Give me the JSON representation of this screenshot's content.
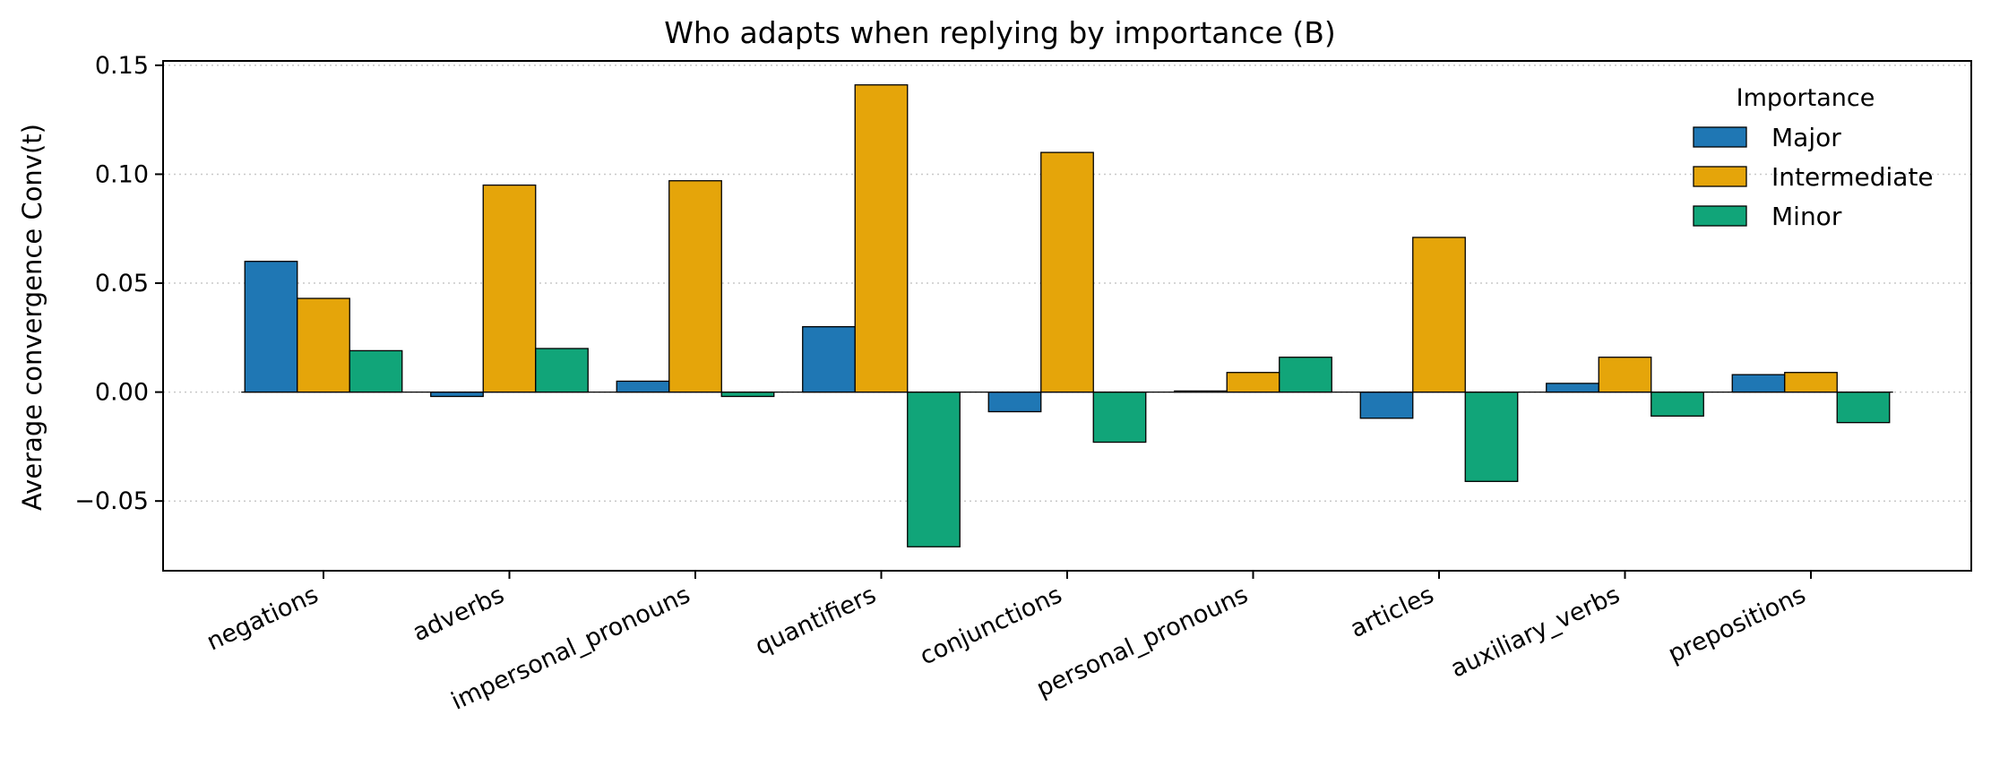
{
  "chart_data": {
    "type": "bar",
    "title": "Who adapts when replying by importance (B)",
    "xlabel": "",
    "ylabel": "Average convergence  Conv(t)",
    "categories": [
      "negations",
      "adverbs",
      "impersonal_pronouns",
      "quantifiers",
      "conjunctions",
      "personal_pronouns",
      "articles",
      "auxiliary_verbs",
      "prepositions"
    ],
    "series": [
      {
        "name": "Major",
        "color": "#1f77b4",
        "values": [
          0.06,
          -0.002,
          0.005,
          0.03,
          -0.009,
          0.0005,
          -0.012,
          0.004,
          0.008
        ]
      },
      {
        "name": "Intermediate",
        "color": "#e5a50a",
        "values": [
          0.043,
          0.095,
          0.097,
          0.141,
          0.11,
          0.009,
          0.071,
          0.016,
          0.009
        ]
      },
      {
        "name": "Minor",
        "color": "#11a579",
        "values": [
          0.019,
          0.02,
          -0.002,
          -0.071,
          -0.023,
          0.016,
          -0.041,
          -0.011,
          -0.014
        ]
      }
    ],
    "ylim": [
      -0.082,
      0.152
    ],
    "yticks": [
      -0.05,
      0.0,
      0.05,
      0.1,
      0.15
    ],
    "ytick_labels": [
      "−0.05",
      "0.00",
      "0.05",
      "0.10",
      "0.15"
    ],
    "grid": "y-dotted",
    "legend": {
      "title": "Importance",
      "placement": "top-right"
    }
  }
}
